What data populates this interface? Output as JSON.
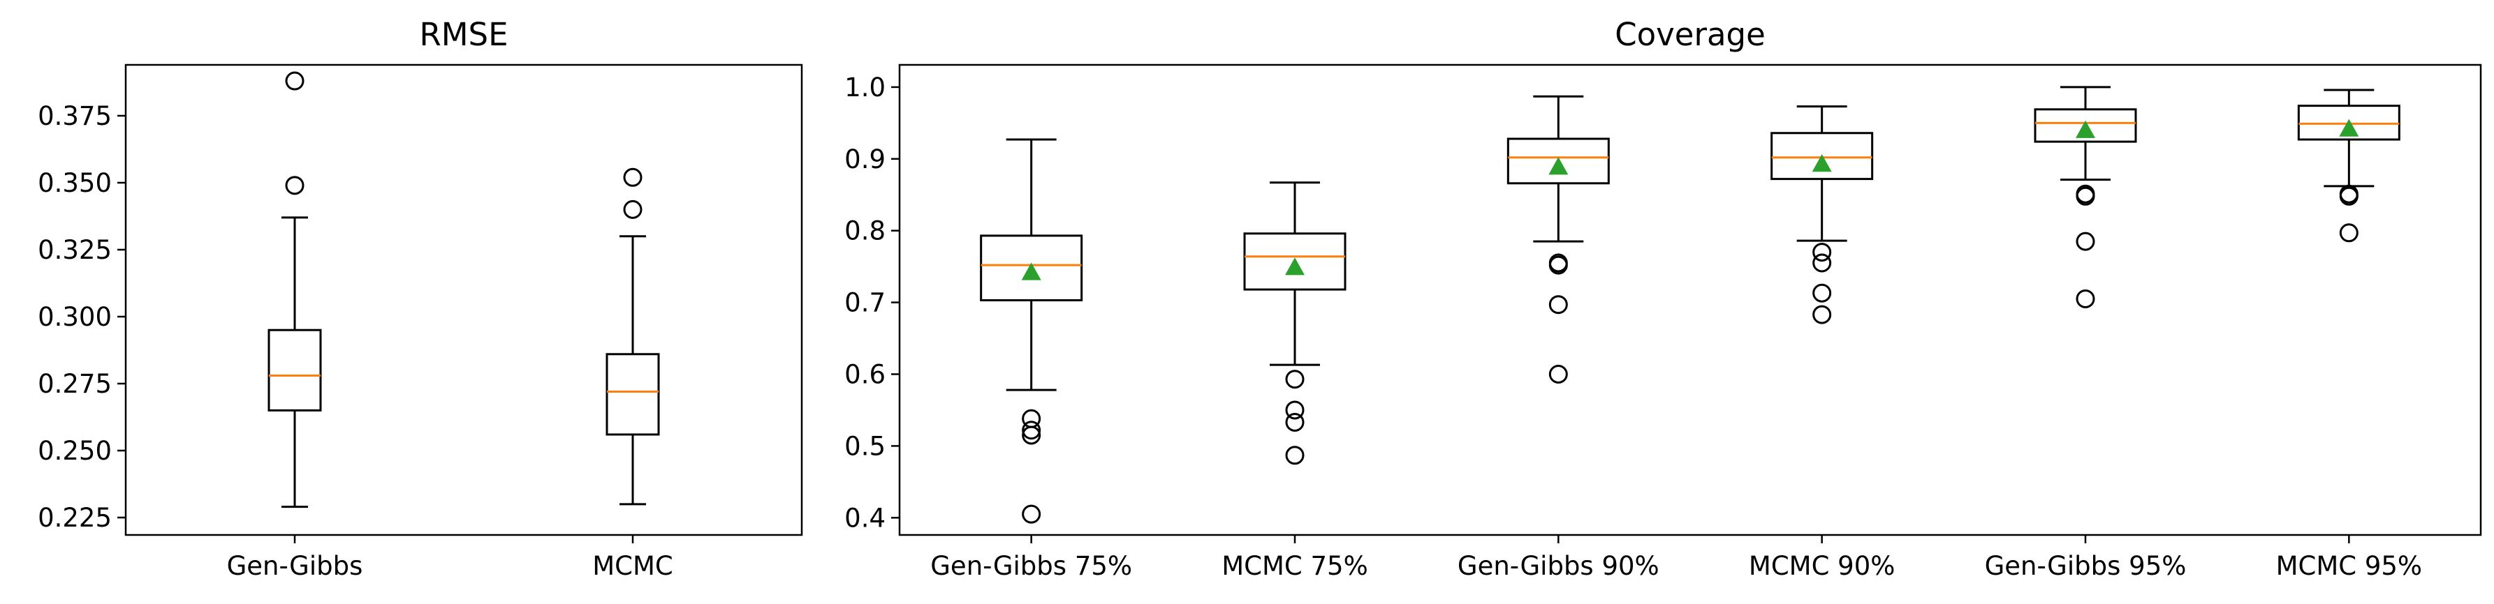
{
  "chart_data": [
    {
      "type": "boxplot",
      "title": "RMSE",
      "xlabel": "",
      "ylabel": "",
      "ylim": [
        0.2185,
        0.394
      ],
      "yticks": [
        0.225,
        0.25,
        0.275,
        0.3,
        0.325,
        0.35,
        0.375
      ],
      "ytick_labels": [
        "0.225",
        "0.250",
        "0.275",
        "0.300",
        "0.325",
        "0.350",
        "0.375"
      ],
      "categories": [
        "Gen-Gibbs",
        "MCMC"
      ],
      "boxes": [
        {
          "label": "Gen-Gibbs",
          "whislo": 0.229,
          "q1": 0.265,
          "med": 0.278,
          "q3": 0.295,
          "whishi": 0.337,
          "fliers": [
            0.349,
            0.388
          ]
        },
        {
          "label": "MCMC",
          "whislo": 0.23,
          "q1": 0.256,
          "med": 0.272,
          "q3": 0.286,
          "whishi": 0.33,
          "fliers": [
            0.34,
            0.352
          ]
        }
      ]
    },
    {
      "type": "boxplot",
      "title": "Coverage",
      "xlabel": "",
      "ylabel": "",
      "ylim": [
        0.376,
        1.031
      ],
      "yticks": [
        0.4,
        0.5,
        0.6,
        0.7,
        0.8,
        0.9,
        1.0
      ],
      "ytick_labels": [
        "0.4",
        "0.5",
        "0.6",
        "0.7",
        "0.8",
        "0.9",
        "1.0"
      ],
      "categories": [
        "Gen-Gibbs 75%",
        "MCMC 75%",
        "Gen-Gibbs 90%",
        "MCMC 90%",
        "Gen-Gibbs 95%",
        "MCMC 95%"
      ],
      "boxes": [
        {
          "label": "Gen-Gibbs 75%",
          "whislo": 0.578,
          "q1": 0.703,
          "med": 0.752,
          "q3": 0.793,
          "whishi": 0.927,
          "mean": 0.742,
          "fliers": [
            0.538,
            0.522,
            0.515,
            0.405
          ]
        },
        {
          "label": "MCMC 75%",
          "whislo": 0.613,
          "q1": 0.718,
          "med": 0.764,
          "q3": 0.796,
          "whishi": 0.867,
          "mean": 0.749,
          "fliers": [
            0.593,
            0.55,
            0.533,
            0.487
          ]
        },
        {
          "label": "Gen-Gibbs 90%",
          "whislo": 0.785,
          "q1": 0.866,
          "med": 0.902,
          "q3": 0.928,
          "whishi": 0.987,
          "mean": 0.889,
          "fliers": [
            0.755,
            0.752,
            0.697,
            0.6
          ]
        },
        {
          "label": "MCMC 90%",
          "whislo": 0.786,
          "q1": 0.872,
          "med": 0.902,
          "q3": 0.936,
          "whishi": 0.973,
          "mean": 0.893,
          "fliers": [
            0.77,
            0.755,
            0.713,
            0.683
          ]
        },
        {
          "label": "Gen-Gibbs 95%",
          "whislo": 0.871,
          "q1": 0.924,
          "med": 0.95,
          "q3": 0.969,
          "whishi": 1.0,
          "mean": 0.94,
          "fliers": [
            0.851,
            0.848,
            0.785,
            0.705
          ]
        },
        {
          "label": "MCMC 95%",
          "whislo": 0.862,
          "q1": 0.927,
          "med": 0.949,
          "q3": 0.974,
          "whishi": 0.996,
          "mean": 0.942,
          "fliers": [
            0.851,
            0.848,
            0.797
          ]
        }
      ]
    }
  ]
}
